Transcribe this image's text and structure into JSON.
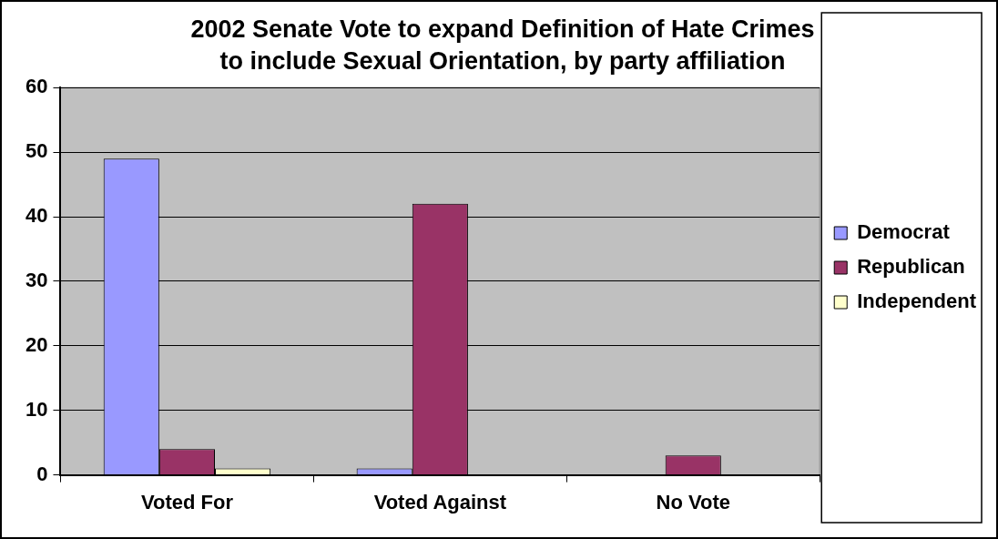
{
  "chart_data": {
    "type": "bar",
    "title": "2002 Senate Vote to expand Definition of Hate Crimes to include Sexual Orientation, by party affiliation",
    "categories": [
      "Voted For",
      "Voted Against",
      "No Vote"
    ],
    "series": [
      {
        "name": "Democrat",
        "color": "#9999ff",
        "values": [
          49,
          1,
          0
        ]
      },
      {
        "name": "Republican",
        "color": "#993366",
        "values": [
          4,
          42,
          3
        ]
      },
      {
        "name": "Independent",
        "color": "#ffffcc",
        "values": [
          1,
          0,
          0
        ]
      }
    ],
    "ylim": [
      0,
      60
    ],
    "yticks": [
      0,
      10,
      20,
      30,
      40,
      50,
      60
    ],
    "grid": "y",
    "legend": "right"
  }
}
